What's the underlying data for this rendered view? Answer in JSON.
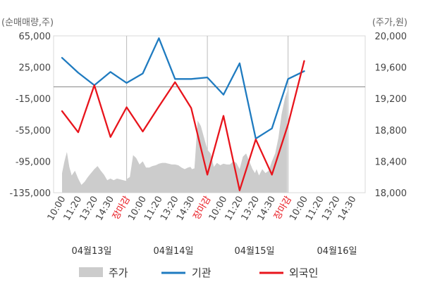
{
  "chart_data": {
    "type": "line",
    "left_unit": "(순매매량,주)",
    "right_unit": "(주가,원)",
    "left_axis": {
      "ylim": [
        -135000,
        65000
      ],
      "ticks": [
        "65,000",
        "25,000",
        "-15,000",
        "-55,000",
        "-95,000",
        "-135,000"
      ],
      "tick_values": [
        65000,
        25000,
        -15000,
        -55000,
        -95000,
        -135000
      ]
    },
    "right_axis": {
      "ylim": [
        18000,
        20000
      ],
      "ticks": [
        "20,000",
        "19,600",
        "19,200",
        "18,800",
        "18,400",
        "18,000"
      ],
      "tick_values": [
        20000,
        19600,
        19200,
        18800,
        18400,
        18000
      ]
    },
    "x_ticks": [
      {
        "label": "10:00",
        "close": false
      },
      {
        "label": "11:20",
        "close": false
      },
      {
        "label": "13:20",
        "close": false
      },
      {
        "label": "14:30",
        "close": false
      },
      {
        "label": "장마감",
        "close": true
      },
      {
        "label": "10:00",
        "close": false
      },
      {
        "label": "11:20",
        "close": false
      },
      {
        "label": "13:20",
        "close": false
      },
      {
        "label": "14:30",
        "close": false
      },
      {
        "label": "장마감",
        "close": true
      },
      {
        "label": "10:00",
        "close": false
      },
      {
        "label": "11:20",
        "close": false
      },
      {
        "label": "13:20",
        "close": false
      },
      {
        "label": "14:30",
        "close": false
      },
      {
        "label": "장마감",
        "close": true
      },
      {
        "label": "10:00",
        "close": false
      },
      {
        "label": "11:20",
        "close": false
      },
      {
        "label": "13:20",
        "close": false
      },
      {
        "label": "14:30",
        "close": false
      }
    ],
    "dates": [
      "04월13일",
      "04월14일",
      "04월15일",
      "04월16일"
    ],
    "legend": [
      "주가",
      "기관",
      "외국인"
    ],
    "colors": {
      "price": "#cccccc",
      "institution": "#1f7bc0",
      "foreign": "#e8141c",
      "close_label": "#e8141c",
      "grid": "#bbbbbb"
    },
    "series": [
      {
        "name": "기관",
        "axis": "left",
        "x": [
          0,
          1,
          2,
          3,
          4,
          5,
          6,
          7,
          8,
          9,
          10,
          11,
          12,
          13,
          14,
          15,
          16
        ],
        "values": [
          37000,
          18000,
          2000,
          19000,
          5000,
          17000,
          62000,
          10000,
          10000,
          12000,
          -10000,
          30000,
          -66000,
          -53000,
          10000,
          20000,
          null
        ]
      },
      {
        "name": "외국인",
        "axis": "left",
        "x": [
          0,
          1,
          2,
          3,
          4,
          5,
          6,
          7,
          8,
          9,
          10,
          11,
          12,
          13,
          14,
          15,
          16
        ],
        "values": [
          -31000,
          -58000,
          2000,
          -64000,
          -26000,
          -57000,
          -25000,
          6000,
          -27000,
          -112000,
          -37000,
          -132000,
          -67000,
          -112000,
          -48000,
          33000,
          null
        ]
      }
    ],
    "price": {
      "name": "주가",
      "axis": "right",
      "x": [
        0,
        0.15,
        0.3,
        0.45,
        0.6,
        0.8,
        1.0,
        1.2,
        1.4,
        1.6,
        1.8,
        2.0,
        2.2,
        2.4,
        2.6,
        2.8,
        3.0,
        3.2,
        3.4,
        3.6,
        3.8,
        3.95,
        4.05,
        4.2,
        4.4,
        4.6,
        4.8,
        5.0,
        5.2,
        5.4,
        5.6,
        5.8,
        6.0,
        6.2,
        6.4,
        6.6,
        6.8,
        7.0,
        7.2,
        7.4,
        7.6,
        7.8,
        7.95,
        8.05,
        8.2,
        8.4,
        8.6,
        8.8,
        9.0,
        9.2,
        9.4,
        9.6,
        9.8,
        10.0,
        10.2,
        10.4,
        10.6,
        10.8,
        11.0,
        11.2,
        11.4,
        11.6,
        11.8,
        11.95,
        12.05,
        12.2,
        12.4,
        12.6,
        12.8,
        13.0,
        13.2,
        13.4,
        13.6,
        13.8,
        13.95
      ],
      "values": [
        18250,
        18400,
        18520,
        18330,
        18220,
        18280,
        18180,
        18100,
        18140,
        18200,
        18250,
        18300,
        18340,
        18280,
        18230,
        18160,
        18180,
        18160,
        18180,
        18170,
        18160,
        18150,
        18180,
        18200,
        18480,
        18440,
        18360,
        18400,
        18320,
        18320,
        18340,
        18350,
        18370,
        18380,
        18380,
        18370,
        18360,
        18360,
        18350,
        18320,
        18300,
        18320,
        18330,
        18300,
        18310,
        18920,
        18850,
        18700,
        18550,
        18500,
        18330,
        18380,
        18350,
        18370,
        18360,
        18360,
        18400,
        18380,
        18300,
        18460,
        18500,
        18400,
        18300,
        18250,
        18300,
        18220,
        18300,
        18250,
        18280,
        18400,
        18500,
        18700,
        19000,
        19200,
        19300
      ]
    }
  }
}
